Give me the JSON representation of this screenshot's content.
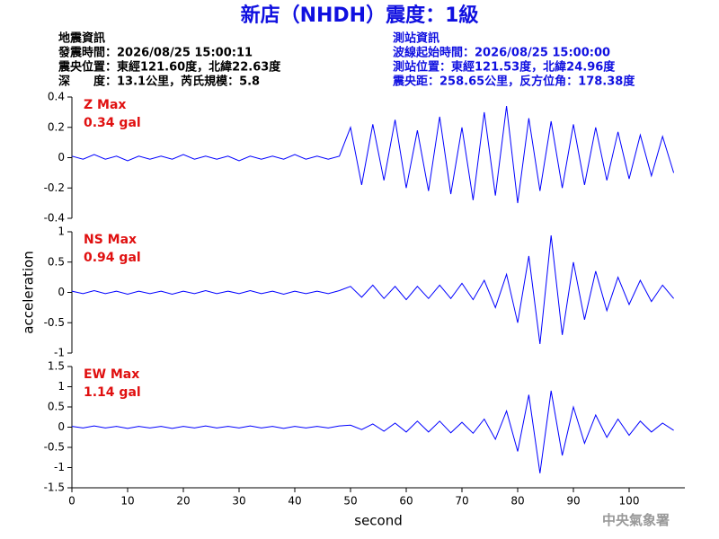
{
  "header": {
    "title": "新店（NHDH）震度：1級",
    "event": {
      "heading": "地震資訊",
      "lines": [
        "發震時間：2026/08/25 15:00:11",
        "震央位置：東經121.60度，北緯22.63度",
        "深　　度：13.1公里，芮氏規模：5.8"
      ]
    },
    "station": {
      "heading": "測站資訊",
      "lines": [
        "波線起始時間：2026/08/25 15:00:00",
        "測站位置：東經121.53度，北緯24.96度",
        "震央距：258.65公里，反方位角：178.38度"
      ]
    }
  },
  "footer": "中央氣象署",
  "chart_data": [
    {
      "type": "line",
      "annotations": [
        "Z Max",
        "0.34 gal"
      ],
      "color": "#0000ff",
      "x": [
        0,
        2,
        4,
        6,
        8,
        10,
        12,
        14,
        16,
        18,
        20,
        22,
        24,
        26,
        28,
        30,
        32,
        34,
        36,
        38,
        40,
        42,
        44,
        46,
        48,
        50,
        52,
        54,
        56,
        58,
        60,
        62,
        64,
        66,
        68,
        70,
        72,
        74,
        76,
        78,
        80,
        82,
        84,
        86,
        88,
        90,
        92,
        94,
        96,
        98,
        100,
        102,
        104,
        106,
        108
      ],
      "values": [
        0.01,
        -0.01,
        0.02,
        -0.01,
        0.01,
        -0.02,
        0.01,
        -0.01,
        0.01,
        -0.01,
        0.02,
        -0.01,
        0.01,
        -0.01,
        0.01,
        -0.02,
        0.01,
        -0.01,
        0.01,
        -0.01,
        0.02,
        -0.01,
        0.01,
        -0.01,
        0.01,
        0.2,
        -0.18,
        0.22,
        -0.15,
        0.25,
        -0.2,
        0.18,
        -0.22,
        0.27,
        -0.24,
        0.2,
        -0.28,
        0.3,
        -0.25,
        0.34,
        -0.3,
        0.26,
        -0.22,
        0.24,
        -0.2,
        0.22,
        -0.18,
        0.2,
        -0.15,
        0.17,
        -0.14,
        0.15,
        -0.12,
        0.14,
        -0.1
      ],
      "xlim": [
        0,
        110
      ],
      "ylim": [
        -0.4,
        0.4
      ],
      "yticks": [
        -0.4,
        -0.2,
        0,
        0.2,
        0.4
      ]
    },
    {
      "type": "line",
      "annotations": [
        "NS Max",
        "0.94 gal"
      ],
      "color": "#0000ff",
      "y_label": "acceleration",
      "x": [
        0,
        2,
        4,
        6,
        8,
        10,
        12,
        14,
        16,
        18,
        20,
        22,
        24,
        26,
        28,
        30,
        32,
        34,
        36,
        38,
        40,
        42,
        44,
        46,
        48,
        50,
        52,
        54,
        56,
        58,
        60,
        62,
        64,
        66,
        68,
        70,
        72,
        74,
        76,
        78,
        80,
        82,
        84,
        86,
        88,
        90,
        92,
        94,
        96,
        98,
        100,
        102,
        104,
        106,
        108
      ],
      "values": [
        0.02,
        -0.02,
        0.03,
        -0.02,
        0.02,
        -0.03,
        0.02,
        -0.02,
        0.02,
        -0.03,
        0.02,
        -0.02,
        0.03,
        -0.02,
        0.02,
        -0.02,
        0.03,
        -0.02,
        0.02,
        -0.03,
        0.02,
        -0.02,
        0.02,
        -0.02,
        0.03,
        0.1,
        -0.08,
        0.12,
        -0.1,
        0.1,
        -0.12,
        0.1,
        -0.1,
        0.12,
        -0.1,
        0.15,
        -0.12,
        0.2,
        -0.25,
        0.3,
        -0.5,
        0.6,
        -0.85,
        0.94,
        -0.7,
        0.5,
        -0.45,
        0.35,
        -0.3,
        0.25,
        -0.2,
        0.2,
        -0.15,
        0.12,
        -0.1
      ],
      "xlim": [
        0,
        110
      ],
      "ylim": [
        -1,
        1
      ],
      "yticks": [
        -1,
        -0.5,
        0,
        0.5,
        1
      ]
    },
    {
      "type": "line",
      "annotations": [
        "EW Max",
        "1.14 gal"
      ],
      "color": "#0000ff",
      "x_label": "second",
      "x": [
        0,
        2,
        4,
        6,
        8,
        10,
        12,
        14,
        16,
        18,
        20,
        22,
        24,
        26,
        28,
        30,
        32,
        34,
        36,
        38,
        40,
        42,
        44,
        46,
        48,
        50,
        52,
        54,
        56,
        58,
        60,
        62,
        64,
        66,
        68,
        70,
        72,
        74,
        76,
        78,
        80,
        82,
        84,
        86,
        88,
        90,
        92,
        94,
        96,
        98,
        100,
        102,
        104,
        106,
        108
      ],
      "values": [
        0.02,
        -0.02,
        0.03,
        -0.02,
        0.02,
        -0.03,
        0.02,
        -0.02,
        0.02,
        -0.03,
        0.02,
        -0.02,
        0.03,
        -0.02,
        0.02,
        -0.02,
        0.03,
        -0.02,
        0.02,
        -0.03,
        0.02,
        -0.02,
        0.02,
        -0.02,
        0.03,
        0.05,
        -0.06,
        0.08,
        -0.1,
        0.1,
        -0.12,
        0.15,
        -0.12,
        0.15,
        -0.14,
        0.12,
        -0.15,
        0.2,
        -0.3,
        0.4,
        -0.6,
        0.8,
        -1.14,
        0.9,
        -0.7,
        0.5,
        -0.4,
        0.3,
        -0.25,
        0.2,
        -0.2,
        0.15,
        -0.12,
        0.1,
        -0.08
      ],
      "xlim": [
        0,
        110
      ],
      "ylim": [
        -1.5,
        1.5
      ],
      "yticks": [
        -1.5,
        -1,
        -0.5,
        0,
        0.5,
        1,
        1.5
      ],
      "xticks": [
        0,
        10,
        20,
        30,
        40,
        50,
        60,
        70,
        80,
        90,
        100
      ]
    }
  ]
}
